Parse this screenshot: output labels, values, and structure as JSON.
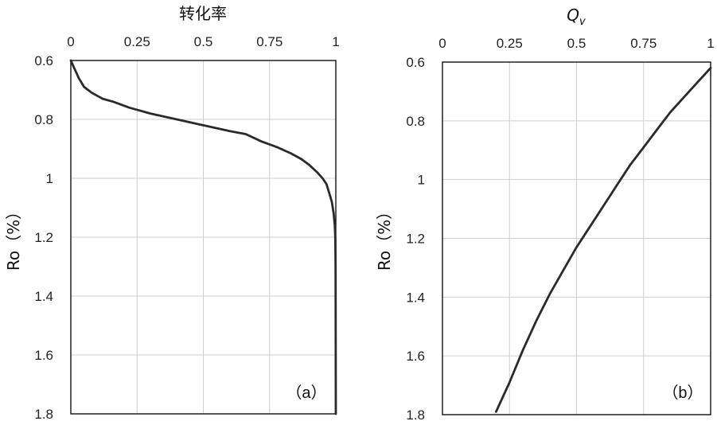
{
  "chart_data": [
    {
      "type": "line",
      "panel_label": "（a）",
      "xlabel": "转化率",
      "ylabel": "Ro（%）",
      "xaxis_position": "top",
      "yaxis_inverted": true,
      "xlim": [
        0,
        1
      ],
      "ylim": [
        0.6,
        1.8
      ],
      "xticks": [
        "0",
        "0.25",
        "0.5",
        "0.75",
        "1"
      ],
      "yticks": [
        "0.6",
        "0.8",
        "1",
        "1.2",
        "1.4",
        "1.6",
        "1.8"
      ],
      "grid": true,
      "series": [
        {
          "x": [
            0,
            0.01,
            0.02,
            0.03,
            0.05,
            0.08,
            0.12,
            0.16,
            0.22,
            0.3,
            0.4,
            0.5,
            0.6,
            0.66,
            0.72,
            0.78,
            0.83,
            0.87,
            0.9,
            0.93,
            0.95,
            0.965,
            0.975,
            0.985,
            0.992,
            0.996,
            0.998,
            0.999,
            1.0
          ],
          "y": [
            0.6,
            0.62,
            0.64,
            0.66,
            0.69,
            0.71,
            0.73,
            0.74,
            0.76,
            0.78,
            0.8,
            0.82,
            0.84,
            0.85,
            0.875,
            0.895,
            0.915,
            0.935,
            0.955,
            0.98,
            1.0,
            1.02,
            1.05,
            1.08,
            1.12,
            1.16,
            1.2,
            1.3,
            1.8
          ]
        }
      ]
    },
    {
      "type": "line",
      "panel_label": "（b）",
      "xlabel": "Q_v",
      "ylabel": "Ro（%）",
      "xaxis_position": "top",
      "yaxis_inverted": true,
      "xlim": [
        0,
        1
      ],
      "ylim": [
        0.6,
        1.8
      ],
      "xticks": [
        "0",
        "0.25",
        "0.5",
        "0.75",
        "1"
      ],
      "yticks": [
        "0.6",
        "0.8",
        "1",
        "1.2",
        "1.4",
        "1.6",
        "1.8"
      ],
      "grid": true,
      "series": [
        {
          "x": [
            1.0,
            0.95,
            0.9,
            0.85,
            0.8,
            0.75,
            0.7,
            0.65,
            0.6,
            0.55,
            0.5,
            0.45,
            0.4,
            0.35,
            0.3,
            0.25,
            0.2
          ],
          "y": [
            0.62,
            0.67,
            0.72,
            0.77,
            0.83,
            0.89,
            0.95,
            1.02,
            1.09,
            1.16,
            1.23,
            1.31,
            1.39,
            1.48,
            1.58,
            1.69,
            1.79
          ]
        }
      ]
    }
  ]
}
